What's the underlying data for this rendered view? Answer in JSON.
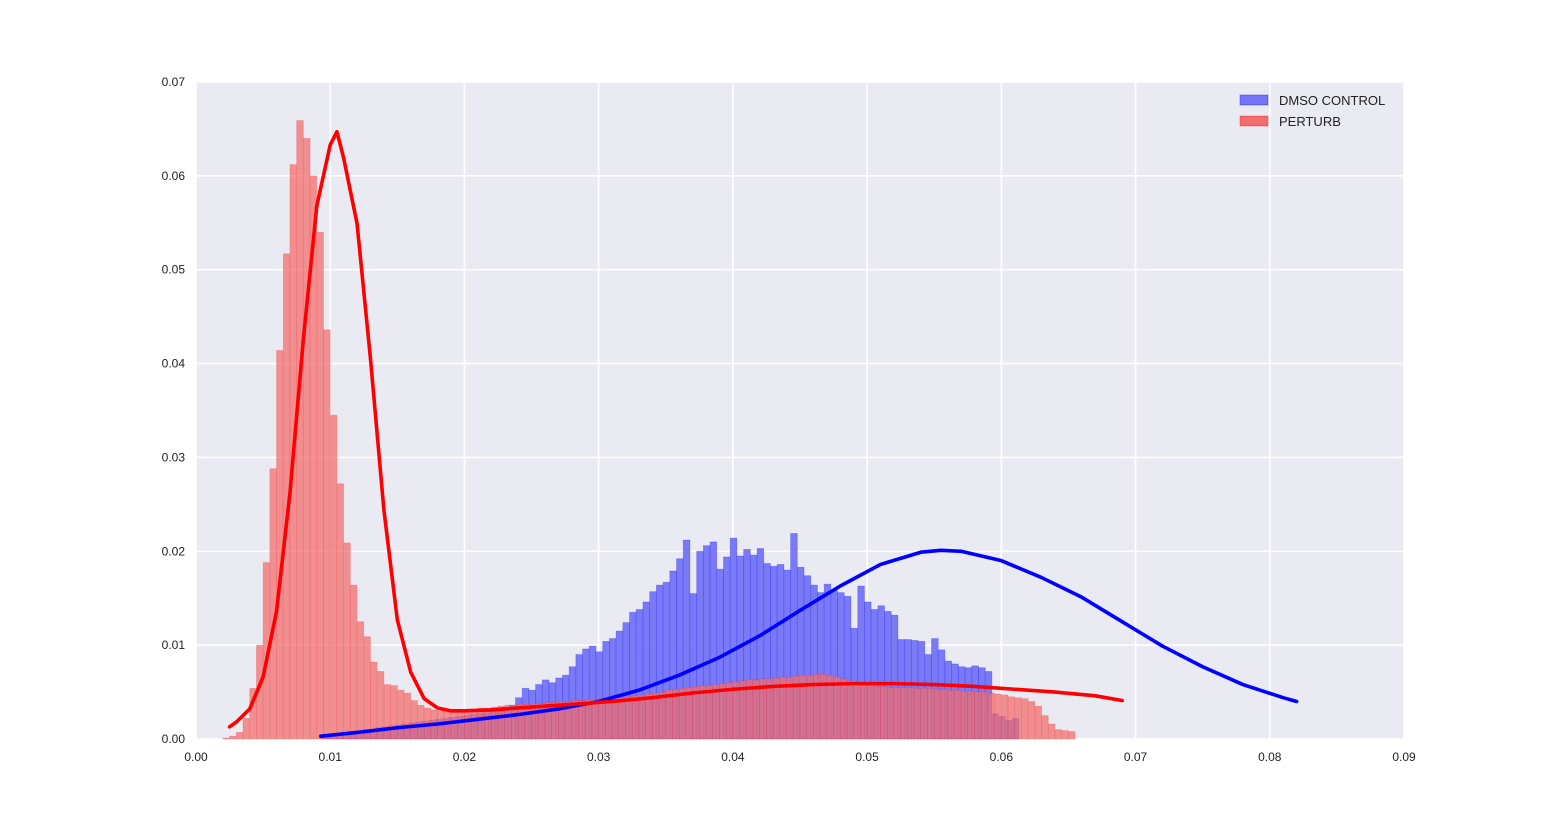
{
  "chart_data": {
    "type": "histogram",
    "xlim": [
      0.0,
      0.09
    ],
    "ylim": [
      0.0,
      0.07
    ],
    "grid": true,
    "legend_position": "top-right",
    "x_ticks": [
      "0.00",
      "0.01",
      "0.02",
      "0.03",
      "0.04",
      "0.05",
      "0.06",
      "0.07",
      "0.08",
      "0.09"
    ],
    "y_ticks": [
      "0.00",
      "0.01",
      "0.02",
      "0.03",
      "0.04",
      "0.05",
      "0.06",
      "0.07"
    ],
    "x_tick_values": [
      0.0,
      0.01,
      0.02,
      0.03,
      0.04,
      0.05,
      0.06,
      0.07,
      0.08,
      0.09
    ],
    "y_tick_values": [
      0.0,
      0.01,
      0.02,
      0.03,
      0.04,
      0.05,
      0.06,
      0.07
    ],
    "series": [
      {
        "name": "DMSO CONTROL",
        "color": "#0000ff",
        "bar_color": "#7474f5",
        "bin_start": 0.0093,
        "bin_width": 0.0005,
        "values": [
          0.0002,
          0.0003,
          0.0004,
          0.0005,
          0.0006,
          0.0007,
          0.0008,
          0.001,
          0.0012,
          0.0013,
          0.0014,
          0.0015,
          0.0016,
          0.0017,
          0.0018,
          0.0019,
          0.002,
          0.0021,
          0.0022,
          0.0023,
          0.0024,
          0.0025,
          0.0026,
          0.0027,
          0.0028,
          0.003,
          0.0032,
          0.0034,
          0.0036,
          0.0044,
          0.0054,
          0.0052,
          0.0058,
          0.0063,
          0.006,
          0.0065,
          0.0068,
          0.0077,
          0.009,
          0.0096,
          0.0099,
          0.0093,
          0.0104,
          0.0107,
          0.0115,
          0.0124,
          0.0135,
          0.0138,
          0.0146,
          0.0157,
          0.0164,
          0.0167,
          0.0179,
          0.0192,
          0.0212,
          0.0155,
          0.02,
          0.0206,
          0.021,
          0.0181,
          0.0194,
          0.0214,
          0.0195,
          0.0202,
          0.0196,
          0.0203,
          0.0187,
          0.0184,
          0.0186,
          0.018,
          0.0219,
          0.0183,
          0.0174,
          0.0164,
          0.0156,
          0.0165,
          0.0158,
          0.0156,
          0.0152,
          0.0118,
          0.0163,
          0.0146,
          0.0138,
          0.0142,
          0.0136,
          0.0132,
          0.0106,
          0.0106,
          0.0105,
          0.0104,
          0.009,
          0.0107,
          0.0095,
          0.0083,
          0.008,
          0.0077,
          0.0076,
          0.0078,
          0.0076,
          0.0072,
          0.0027,
          0.0024,
          0.002,
          0.0022
        ]
      },
      {
        "name": "PERTURB",
        "color": "#ff0000",
        "bar_color": "#f26e6e",
        "bin_start": 0.002,
        "bin_width": 0.0005,
        "values": [
          0.0001,
          0.0003,
          0.0007,
          0.0022,
          0.0054,
          0.01,
          0.0188,
          0.0288,
          0.0414,
          0.0517,
          0.0612,
          0.0659,
          0.064,
          0.06,
          0.054,
          0.0436,
          0.0345,
          0.0272,
          0.0209,
          0.0164,
          0.0125,
          0.0109,
          0.0082,
          0.0072,
          0.0058,
          0.0057,
          0.0052,
          0.0049,
          0.0041,
          0.0036,
          0.0033,
          0.0031,
          0.003,
          0.0029,
          0.003,
          0.003,
          0.0031,
          0.0032,
          0.0033,
          0.0033,
          0.0034,
          0.0035,
          0.0036,
          0.0036,
          0.0037,
          0.0037,
          0.0038,
          0.0038,
          0.0039,
          0.0039,
          0.004,
          0.004,
          0.0041,
          0.0041,
          0.0042,
          0.0042,
          0.0043,
          0.0043,
          0.0044,
          0.0044,
          0.0045,
          0.0046,
          0.0047,
          0.0048,
          0.0049,
          0.005,
          0.0052,
          0.0053,
          0.0054,
          0.0055,
          0.0056,
          0.0057,
          0.0057,
          0.0058,
          0.0059,
          0.006,
          0.0061,
          0.0062,
          0.0063,
          0.0063,
          0.0064,
          0.0064,
          0.0065,
          0.0066,
          0.0066,
          0.0067,
          0.0068,
          0.0068,
          0.0069,
          0.0069,
          0.0068,
          0.0066,
          0.0064,
          0.0062,
          0.006,
          0.0058,
          0.0057,
          0.0056,
          0.0056,
          0.0055,
          0.0055,
          0.0055,
          0.0055,
          0.0054,
          0.0054,
          0.0054,
          0.0053,
          0.0053,
          0.0052,
          0.0052,
          0.0051,
          0.0051,
          0.005,
          0.005,
          0.0049,
          0.0048,
          0.0047,
          0.0045,
          0.0044,
          0.0043,
          0.004,
          0.0035,
          0.0025,
          0.0016,
          0.001,
          0.0009,
          0.0008
        ]
      }
    ],
    "kde": [
      {
        "name": "DMSO CONTROL",
        "color": "#0000ff",
        "x": [
          0.0093,
          0.012,
          0.015,
          0.018,
          0.021,
          0.024,
          0.027,
          0.03,
          0.033,
          0.036,
          0.039,
          0.042,
          0.045,
          0.048,
          0.051,
          0.054,
          0.0555,
          0.057,
          0.06,
          0.063,
          0.066,
          0.069,
          0.072,
          0.075,
          0.078,
          0.081,
          0.082
        ],
        "y": [
          0.0003,
          0.0007,
          0.0012,
          0.0016,
          0.0021,
          0.0026,
          0.0032,
          0.004,
          0.0052,
          0.0068,
          0.0087,
          0.011,
          0.0137,
          0.0163,
          0.0186,
          0.0199,
          0.0201,
          0.02,
          0.019,
          0.0172,
          0.0151,
          0.0125,
          0.0099,
          0.0077,
          0.0058,
          0.0044,
          0.004
        ]
      },
      {
        "name": "PERTURB",
        "color": "#ff0000",
        "x": [
          0.0025,
          0.003,
          0.004,
          0.005,
          0.006,
          0.007,
          0.008,
          0.009,
          0.01,
          0.0105,
          0.011,
          0.012,
          0.013,
          0.014,
          0.015,
          0.016,
          0.017,
          0.018,
          0.019,
          0.02,
          0.022,
          0.025,
          0.028,
          0.031,
          0.034,
          0.037,
          0.04,
          0.043,
          0.046,
          0.049,
          0.052,
          0.055,
          0.058,
          0.061,
          0.064,
          0.067,
          0.069
        ],
        "y": [
          0.0013,
          0.0018,
          0.0032,
          0.0066,
          0.0136,
          0.0262,
          0.0426,
          0.0568,
          0.0633,
          0.0647,
          0.0619,
          0.0549,
          0.0405,
          0.0244,
          0.0127,
          0.0071,
          0.0043,
          0.0033,
          0.003,
          0.003,
          0.0031,
          0.0034,
          0.0037,
          0.004,
          0.0044,
          0.0049,
          0.0053,
          0.0056,
          0.0058,
          0.0059,
          0.0059,
          0.0058,
          0.0056,
          0.0053,
          0.005,
          0.0046,
          0.0041
        ]
      }
    ]
  }
}
